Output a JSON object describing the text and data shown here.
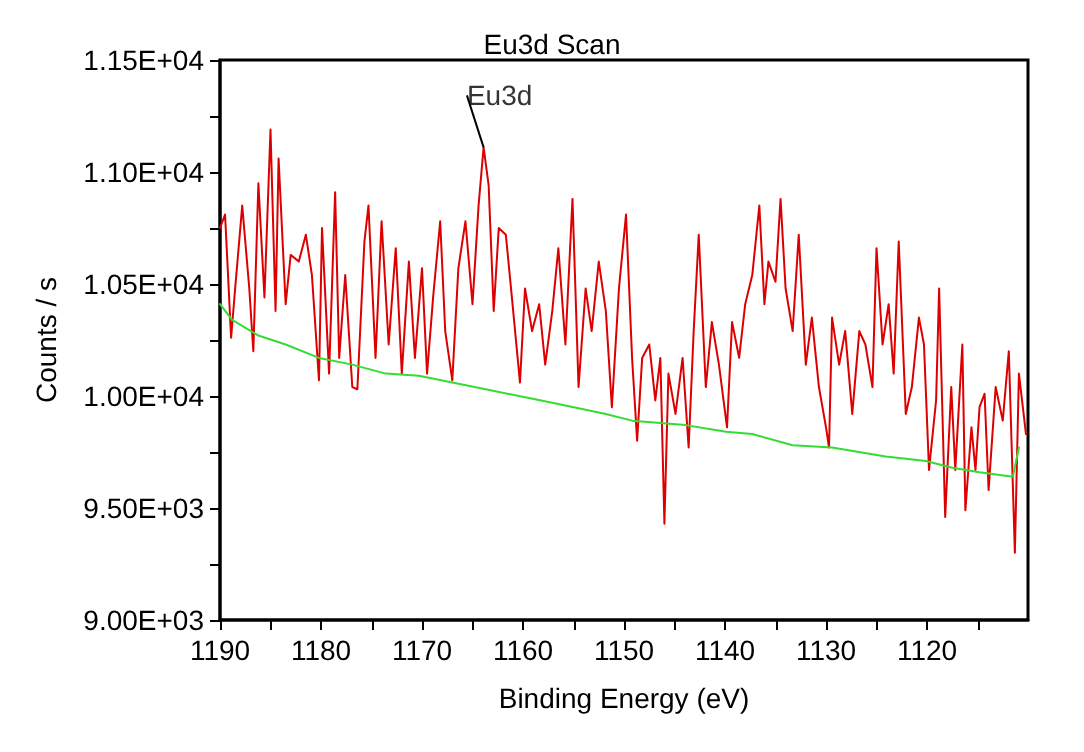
{
  "chart_data": {
    "type": "line",
    "title": "Eu3d Scan",
    "xlabel": "Binding Energy (eV)",
    "ylabel": "Counts / s",
    "annotations": [
      {
        "text": "Eu3d",
        "x": 1163.9,
        "y": 11110
      }
    ],
    "xlim": [
      1190,
      1110
    ],
    "ylim": [
      9000,
      11500
    ],
    "xticks": [
      1190,
      {
        "value": 1185,
        "label": null
      },
      1180,
      {
        "value": 1175,
        "label": null
      },
      1170,
      {
        "value": 1165,
        "label": null
      },
      1160,
      {
        "value": 1155,
        "label": null
      },
      1150,
      {
        "value": 1145,
        "label": null
      },
      1140,
      {
        "value": 1135,
        "label": null
      },
      1130,
      {
        "value": 1125,
        "label": null
      },
      1120,
      {
        "value": 1115,
        "label": null
      }
    ],
    "yticks": [
      {
        "value": 9000,
        "label": "9.00E+03"
      },
      {
        "value": 9250,
        "label": null
      },
      {
        "value": 9500,
        "label": "9.50E+03"
      },
      {
        "value": 9750,
        "label": null
      },
      {
        "value": 10000,
        "label": "1.00E+04"
      },
      {
        "value": 10250,
        "label": null
      },
      {
        "value": 10500,
        "label": "1.05E+04"
      },
      {
        "value": 10750,
        "label": null
      },
      {
        "value": 11000,
        "label": "1.10E+04"
      },
      {
        "value": 11250,
        "label": null
      },
      {
        "value": 11500,
        "label": "1.15E+04"
      }
    ],
    "grid": false,
    "marker": "none",
    "line_style": "solid",
    "series": [
      {
        "color": "#dd0000",
        "x": [
          1190.0,
          1189.5,
          1188.9,
          1188.5,
          1187.8,
          1187.1,
          1186.7,
          1186.2,
          1185.6,
          1185.0,
          1184.5,
          1184.2,
          1183.5,
          1183.0,
          1182.2,
          1181.5,
          1180.9,
          1180.2,
          1179.9,
          1179.2,
          1178.6,
          1178.2,
          1177.6,
          1176.9,
          1176.4,
          1175.7,
          1175.3,
          1174.6,
          1174.0,
          1173.3,
          1172.6,
          1172.0,
          1171.3,
          1170.7,
          1170.0,
          1169.5,
          1168.9,
          1168.2,
          1167.7,
          1167.0,
          1166.4,
          1165.7,
          1165.0,
          1164.4,
          1163.9,
          1163.4,
          1162.9,
          1162.4,
          1161.7,
          1161.1,
          1160.3,
          1159.8,
          1159.1,
          1158.4,
          1157.8,
          1157.1,
          1156.5,
          1155.8,
          1155.1,
          1154.5,
          1153.8,
          1153.2,
          1152.5,
          1151.8,
          1151.2,
          1150.5,
          1149.8,
          1149.2,
          1148.7,
          1148.2,
          1147.5,
          1146.9,
          1146.4,
          1146.0,
          1145.6,
          1144.9,
          1144.2,
          1143.6,
          1143.1,
          1142.6,
          1141.9,
          1141.3,
          1140.6,
          1139.8,
          1139.3,
          1138.6,
          1138.0,
          1137.3,
          1136.6,
          1136.1,
          1135.7,
          1135.0,
          1134.5,
          1134.0,
          1133.3,
          1132.7,
          1132.0,
          1131.4,
          1130.7,
          1130.0,
          1129.7,
          1129.4,
          1128.7,
          1128.1,
          1127.4,
          1126.7,
          1126.1,
          1125.4,
          1125.0,
          1124.4,
          1123.8,
          1123.3,
          1122.8,
          1122.1,
          1121.5,
          1120.8,
          1120.3,
          1119.8,
          1119.1,
          1118.8,
          1118.2,
          1117.6,
          1117.2,
          1116.5,
          1116.2,
          1115.6,
          1115.2,
          1114.8,
          1114.3,
          1113.9,
          1113.2,
          1112.5,
          1111.9,
          1111.3,
          1110.9,
          1110.2
        ],
        "values": [
          10750,
          10810,
          10260,
          10480,
          10850,
          10480,
          10200,
          10950,
          10440,
          11190,
          10380,
          11060,
          10410,
          10630,
          10600,
          10720,
          10540,
          10070,
          10750,
          10100,
          10910,
          10170,
          10540,
          10040,
          10030,
          10690,
          10850,
          10170,
          10780,
          10230,
          10660,
          10100,
          10600,
          10170,
          10570,
          10100,
          10440,
          10780,
          10290,
          10070,
          10570,
          10780,
          10410,
          10850,
          11110,
          10940,
          10380,
          10750,
          10720,
          10440,
          10060,
          10480,
          10290,
          10410,
          10140,
          10380,
          10660,
          10230,
          10880,
          10040,
          10480,
          10290,
          10600,
          10380,
          9950,
          10480,
          10810,
          10170,
          9800,
          10170,
          10230,
          9980,
          10170,
          9430,
          10100,
          9920,
          10170,
          9770,
          10290,
          10720,
          10040,
          10330,
          10140,
          9860,
          10330,
          10170,
          10410,
          10540,
          10850,
          10410,
          10600,
          10510,
          10880,
          10480,
          10290,
          10720,
          10140,
          10350,
          10040,
          9860,
          9770,
          10350,
          10140,
          10290,
          9920,
          10290,
          10230,
          10040,
          10660,
          10230,
          10410,
          10100,
          10690,
          9920,
          10040,
          10350,
          10230,
          9670,
          9980,
          10480,
          9460,
          10040,
          9670,
          10230,
          9490,
          9860,
          9670,
          9950,
          10010,
          9580,
          10040,
          9890,
          10200,
          9300,
          10100,
          9830
        ]
      },
      {
        "color": "#33dd33",
        "x": [
          1190.0,
          1188.8,
          1186.2,
          1183.5,
          1180.2,
          1176.9,
          1173.6,
          1170.3,
          1167.0,
          1163.7,
          1160.4,
          1157.1,
          1151.8,
          1149.2,
          1143.9,
          1139.9,
          1137.3,
          1133.3,
          1129.4,
          1124.1,
          1120.1,
          1117.5,
          1114.8,
          1111.5,
          1110.9
        ],
        "values": [
          10410,
          10340,
          10270,
          10230,
          10170,
          10140,
          10100,
          10090,
          10060,
          10030,
          10000,
          9970,
          9920,
          9890,
          9870,
          9840,
          9830,
          9780,
          9770,
          9730,
          9710,
          9680,
          9660,
          9640,
          9770
        ]
      }
    ]
  }
}
